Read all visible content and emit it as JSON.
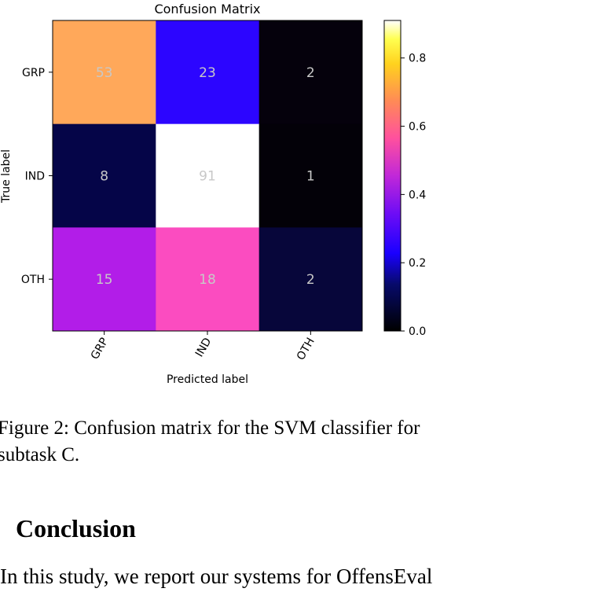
{
  "chart_data": {
    "type": "heatmap",
    "title": "Confusion Matrix",
    "xlabel": "Predicted label",
    "ylabel": "True label",
    "x_categories": [
      "GRP",
      "IND",
      "OTH"
    ],
    "y_categories": [
      "GRP",
      "IND",
      "OTH"
    ],
    "values": [
      [
        53,
        23,
        2
      ],
      [
        8,
        91,
        1
      ],
      [
        15,
        18,
        2
      ]
    ],
    "normalized": [
      [
        0.68,
        0.29,
        0.03
      ],
      [
        0.08,
        0.91,
        0.01
      ],
      [
        0.43,
        0.51,
        0.06
      ]
    ],
    "colormap": "gnuplot2",
    "colorbar": {
      "range": [
        0.0,
        0.91
      ],
      "ticks": [
        0.0,
        0.2,
        0.4,
        0.6,
        0.8
      ],
      "tick_labels": [
        "0.0",
        "0.2",
        "0.4",
        "0.6",
        "0.8"
      ]
    },
    "cell_colors": [
      [
        "#ffa85a",
        "#2c05ff",
        "#05010c"
      ],
      [
        "#050548",
        "#ffffff",
        "#030108"
      ],
      [
        "#b21de8",
        "#fb4cc0",
        "#07063a"
      ]
    ],
    "cell_text_color": "#c8c8c8"
  },
  "caption": {
    "line1": "Figure 2: Confusion matrix for the SVM classifier for",
    "line2": "subtask C."
  },
  "section": {
    "heading": "Conclusion"
  },
  "body_text": "In this study, we report our systems for OffensEval"
}
